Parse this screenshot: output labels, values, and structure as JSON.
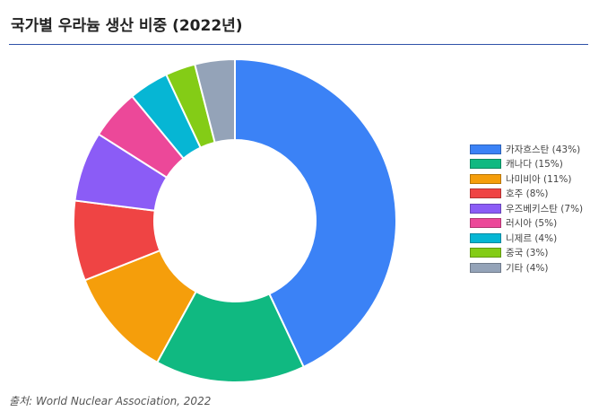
{
  "chart_data": {
    "type": "pie",
    "title": "국가별 우라늄 생산 비중 (2022년)",
    "categories": [
      "카자흐스탄",
      "캐나다",
      "나미비아",
      "호주",
      "우즈베키스탄",
      "러시아",
      "니제르",
      "중국",
      "기타"
    ],
    "values": [
      43,
      15,
      11,
      8,
      7,
      5,
      4,
      3,
      4
    ],
    "legend_labels": [
      "카자흐스탄 (43%)",
      "캐나다 (15%)",
      "나미비아 (11%)",
      "호주 (8%)",
      "우즈베키스탄 (7%)",
      "러시아 (5%)",
      "니제르 (4%)",
      "중국 (3%)",
      "기타 (4%)"
    ],
    "colors": [
      "#3b82f6",
      "#10b981",
      "#f59e0b",
      "#ef4444",
      "#8b5cf6",
      "#ec4899",
      "#06b6d4",
      "#84cc16",
      "#94a3b8"
    ],
    "donut": true,
    "start_angle": "12 o'clock",
    "direction": "clockwise",
    "legend_position": "right",
    "grid": false
  },
  "source": "출처: World Nuclear Association, 2022"
}
